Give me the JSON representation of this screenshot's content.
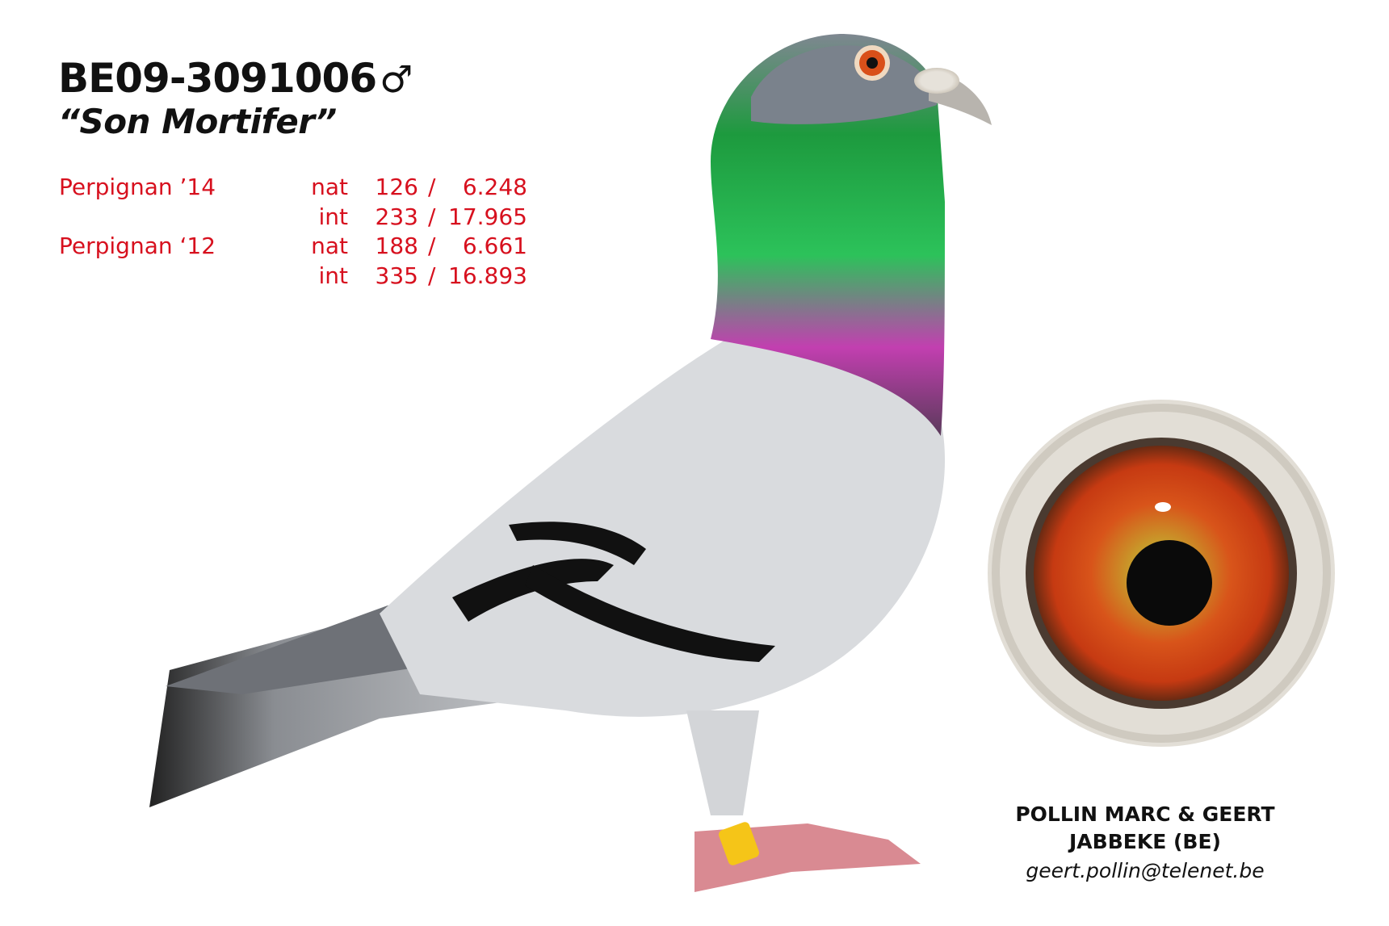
{
  "header": {
    "ring_number": "BE09-3091006",
    "sex_symbol": "♂",
    "name": "“Son Mortifer”"
  },
  "results": [
    {
      "race": "Perpignan ’14",
      "type": "nat",
      "position": "126",
      "separator": "/",
      "total": "6.248"
    },
    {
      "race": "",
      "type": "int",
      "position": "233",
      "separator": "/",
      "total": "17.965"
    },
    {
      "race": "Perpignan ‘12",
      "type": "nat",
      "position": "188",
      "separator": "/",
      "total": "6.661"
    },
    {
      "race": "",
      "type": "int",
      "position": "335",
      "separator": "/",
      "total": "16.893"
    }
  ],
  "owner": {
    "name": "POLLIN MARC & GEERT",
    "location": "JABBEKE (BE)",
    "email": "geert.pollin@telenet.be"
  },
  "colors": {
    "accent_red": "#d7101e",
    "text": "#111111"
  }
}
